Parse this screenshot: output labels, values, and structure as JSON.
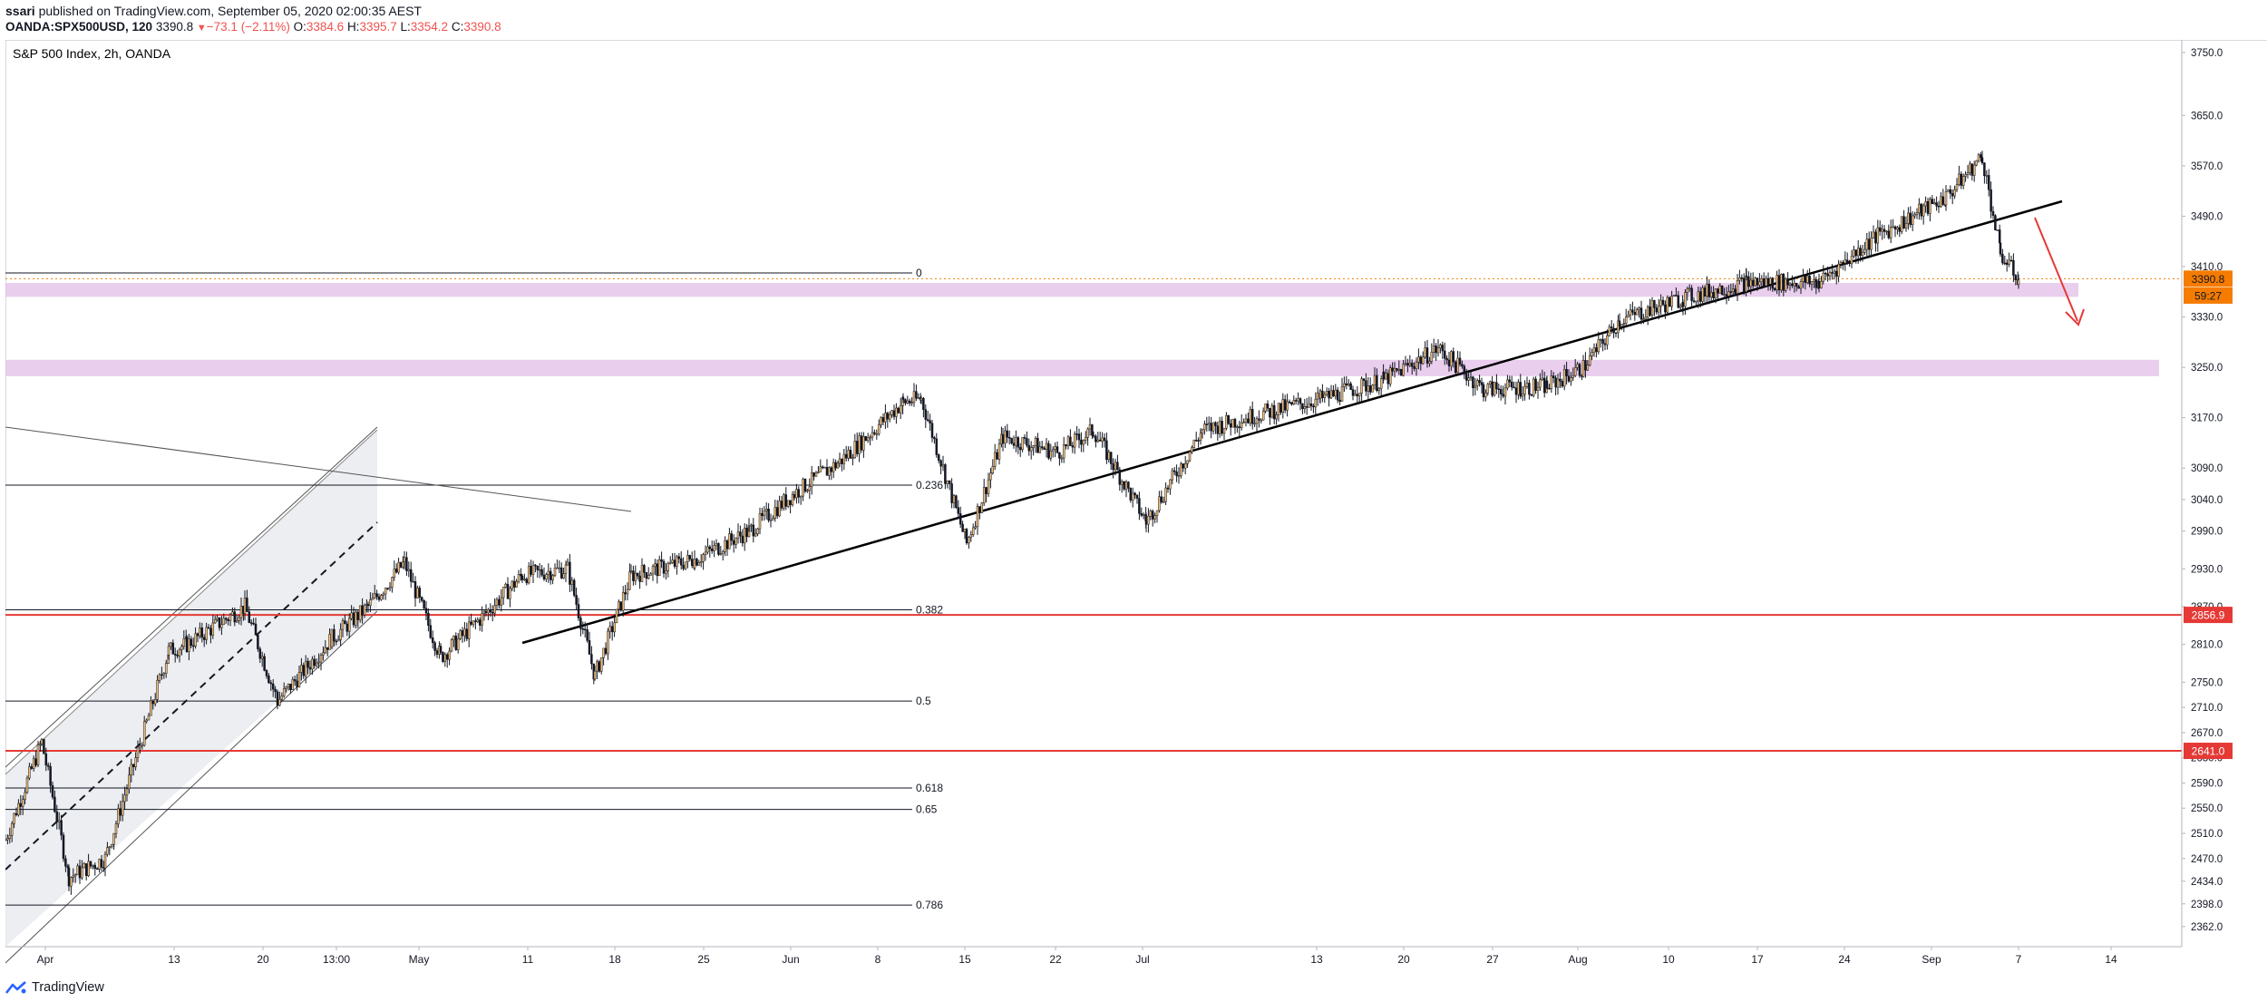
{
  "header": {
    "user": "ssari",
    "published": "published on TradingView.com, September 05, 2020 02:00:35 AEST",
    "symbol": "OANDA:SPX500USD, 120",
    "last": "3390.8",
    "change": "−73.1 (−2.11%)",
    "o_label": "O:",
    "o_value": "3384.6",
    "h_label": "H:",
    "h_value": "3395.7",
    "l_label": "L:",
    "l_value": "3354.2",
    "c_label": "C:",
    "c_value": "3390.8"
  },
  "footer": {
    "brand": "TradingView"
  },
  "colors": {
    "candle": "#131722",
    "support_zone": "#e1bee7",
    "horizontal_red": "#e53935",
    "trendline": "#000000",
    "price_label": "#f57c00",
    "channel_fill": "#e9ebef",
    "arrow": "#e53935"
  },
  "chart_data": {
    "type": "candlestick",
    "title": "S&P 500 Index, 2h, OANDA",
    "ylim": [
      2330,
      3770
    ],
    "y_ticks": [
      "3750.0",
      "3650.0",
      "3570.0",
      "3490.0",
      "3410.0",
      "3330.0",
      "3250.0",
      "3170.0",
      "3090.0",
      "3040.0",
      "2990.0",
      "2930.0",
      "2870.0",
      "2810.0",
      "2750.0",
      "2710.0",
      "2670.0",
      "2630.0",
      "2590.0",
      "2550.0",
      "2510.0",
      "2470.0",
      "2434.0",
      "2398.0",
      "2362.0"
    ],
    "x_ticks": [
      "Apr",
      "13",
      "20",
      "13:00",
      "May",
      "11",
      "18",
      "25",
      "Jun",
      "8",
      "15",
      "22",
      "Jul",
      "13",
      "20",
      "27",
      "Aug",
      "10",
      "17",
      "24",
      "Sep",
      "7",
      "14"
    ],
    "price_labels": [
      {
        "text": "3390.8",
        "value": 3390.8,
        "kind": "last"
      },
      {
        "text": "59:27",
        "value": 3364,
        "kind": "timer"
      },
      {
        "text": "2856.9",
        "value": 2856.9,
        "kind": "level"
      },
      {
        "text": "2641.0",
        "value": 2641.0,
        "kind": "level"
      }
    ],
    "fib_levels": [
      {
        "label": "0",
        "value": 3400
      },
      {
        "label": "0.236",
        "value": 3063
      },
      {
        "label": "0.382",
        "value": 2865
      },
      {
        "label": "0.5",
        "value": 2720
      },
      {
        "label": "0.618",
        "value": 2582
      },
      {
        "label": "0.65",
        "value": 2548
      },
      {
        "label": "0.786",
        "value": 2396
      }
    ],
    "horizontal_levels": [
      2856.9,
      2641.0
    ],
    "zones": [
      [
        3362,
        3384
      ],
      [
        3236,
        3262
      ]
    ],
    "series": [
      {
        "values": [
          [
            "Apr",
            2500
          ],
          [
            "Apr",
            2655
          ],
          [
            "Apr",
            2440
          ],
          [
            "Apr",
            2470
          ],
          [
            "13",
            2800
          ],
          [
            "13",
            2810
          ],
          [
            "20",
            2870
          ],
          [
            "20",
            2720
          ],
          [
            "13:00",
            2820
          ],
          [
            "13:00",
            2870
          ],
          [
            "May",
            2940
          ],
          [
            "May",
            2790
          ],
          [
            "May",
            2860
          ],
          [
            "11",
            2920
          ],
          [
            "11",
            2930
          ],
          [
            "18",
            2760
          ],
          [
            "18",
            2920
          ],
          [
            "25",
            2945
          ],
          [
            "25",
            2990
          ],
          [
            "Jun",
            3050
          ],
          [
            "Jun",
            3100
          ],
          [
            "8",
            3195
          ],
          [
            "8",
            3200
          ],
          [
            "15",
            2970
          ],
          [
            "15",
            3140
          ],
          [
            "22",
            3115
          ],
          [
            "22",
            3150
          ],
          [
            "Jul",
            3005
          ],
          [
            "Jul",
            3150
          ],
          [
            "13",
            3175
          ],
          [
            "13",
            3200
          ],
          [
            "20",
            3230
          ],
          [
            "20",
            3280
          ],
          [
            "27",
            3215
          ],
          [
            "27",
            3220
          ],
          [
            "Aug",
            3250
          ],
          [
            "Aug",
            3325
          ],
          [
            "10",
            3360
          ],
          [
            "17",
            3385
          ],
          [
            "24",
            3385
          ],
          [
            "24",
            3455
          ],
          [
            "Sep",
            3520
          ],
          [
            "Sep",
            3585
          ],
          [
            "7",
            3430
          ],
          [
            "7",
            3390.8
          ]
        ]
      }
    ]
  }
}
